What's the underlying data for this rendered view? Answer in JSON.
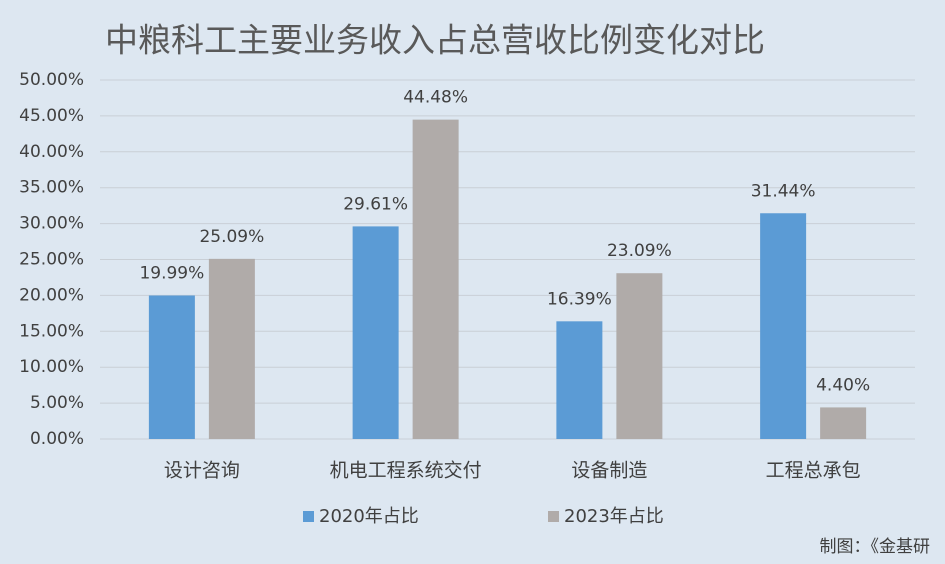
{
  "chart_data": {
    "type": "bar",
    "title": "中粮科工主要业务收入占总营收比例变化对比",
    "categories": [
      "设计咨询",
      "机电工程系统交付",
      "设备制造",
      "工程总承包"
    ],
    "series": [
      {
        "name": "2020年占比",
        "color": "#5b9bd5",
        "values": [
          19.99,
          29.61,
          16.39,
          31.44
        ],
        "value_labels": [
          "19.99%",
          "29.61%",
          "16.39%",
          "31.44%"
        ]
      },
      {
        "name": "2023年占比",
        "color": "#b0aba9",
        "values": [
          25.09,
          44.48,
          23.09,
          4.4
        ],
        "value_labels": [
          "25.09%",
          "44.48%",
          "23.09%",
          "4.40%"
        ]
      }
    ],
    "ylim": [
      0,
      50
    ],
    "yticks": [
      {
        "value": 0,
        "label": "0.00%"
      },
      {
        "value": 5,
        "label": "5.00%"
      },
      {
        "value": 10,
        "label": "10.00%"
      },
      {
        "value": 15,
        "label": "15.00%"
      },
      {
        "value": 20,
        "label": "20.00%"
      },
      {
        "value": 25,
        "label": "25.00%"
      },
      {
        "value": 30,
        "label": "30.00%"
      },
      {
        "value": 35,
        "label": "35.00%"
      },
      {
        "value": 40,
        "label": "40.00%"
      },
      {
        "value": 45,
        "label": "45.00%"
      },
      {
        "value": 50,
        "label": "50.00%"
      }
    ],
    "grid": true,
    "source": "制图：《金基研"
  }
}
